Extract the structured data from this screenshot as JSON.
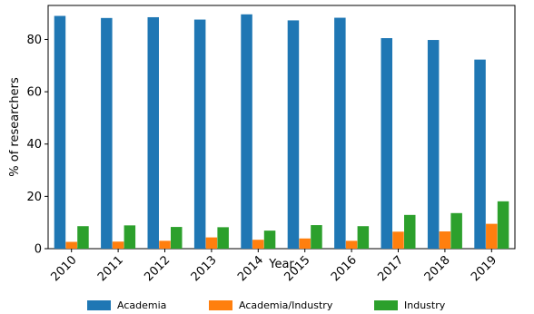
{
  "chart_data": {
    "type": "bar",
    "xlabel": "Year",
    "ylabel": "% of researchers",
    "ylim": [
      0,
      93
    ],
    "yticks": [
      0,
      20,
      40,
      60,
      80
    ],
    "categories": [
      "2010",
      "2011",
      "2012",
      "2013",
      "2014",
      "2015",
      "2016",
      "2017",
      "2018",
      "2019"
    ],
    "series": [
      {
        "name": "Academia",
        "color": "#1f77b4",
        "values": [
          89.0,
          88.2,
          88.5,
          87.6,
          89.6,
          87.3,
          88.3,
          80.5,
          79.8,
          72.3
        ]
      },
      {
        "name": "Academia/Industry",
        "color": "#ff7f0e",
        "values": [
          2.6,
          2.7,
          3.0,
          4.3,
          3.4,
          3.9,
          3.0,
          6.5,
          6.6,
          9.5
        ]
      },
      {
        "name": "Industry",
        "color": "#2ca02c",
        "values": [
          8.6,
          8.9,
          8.3,
          8.2,
          6.9,
          9.0,
          8.6,
          12.9,
          13.6,
          18.1
        ]
      }
    ],
    "legend_position": "bottom",
    "grid": false
  }
}
